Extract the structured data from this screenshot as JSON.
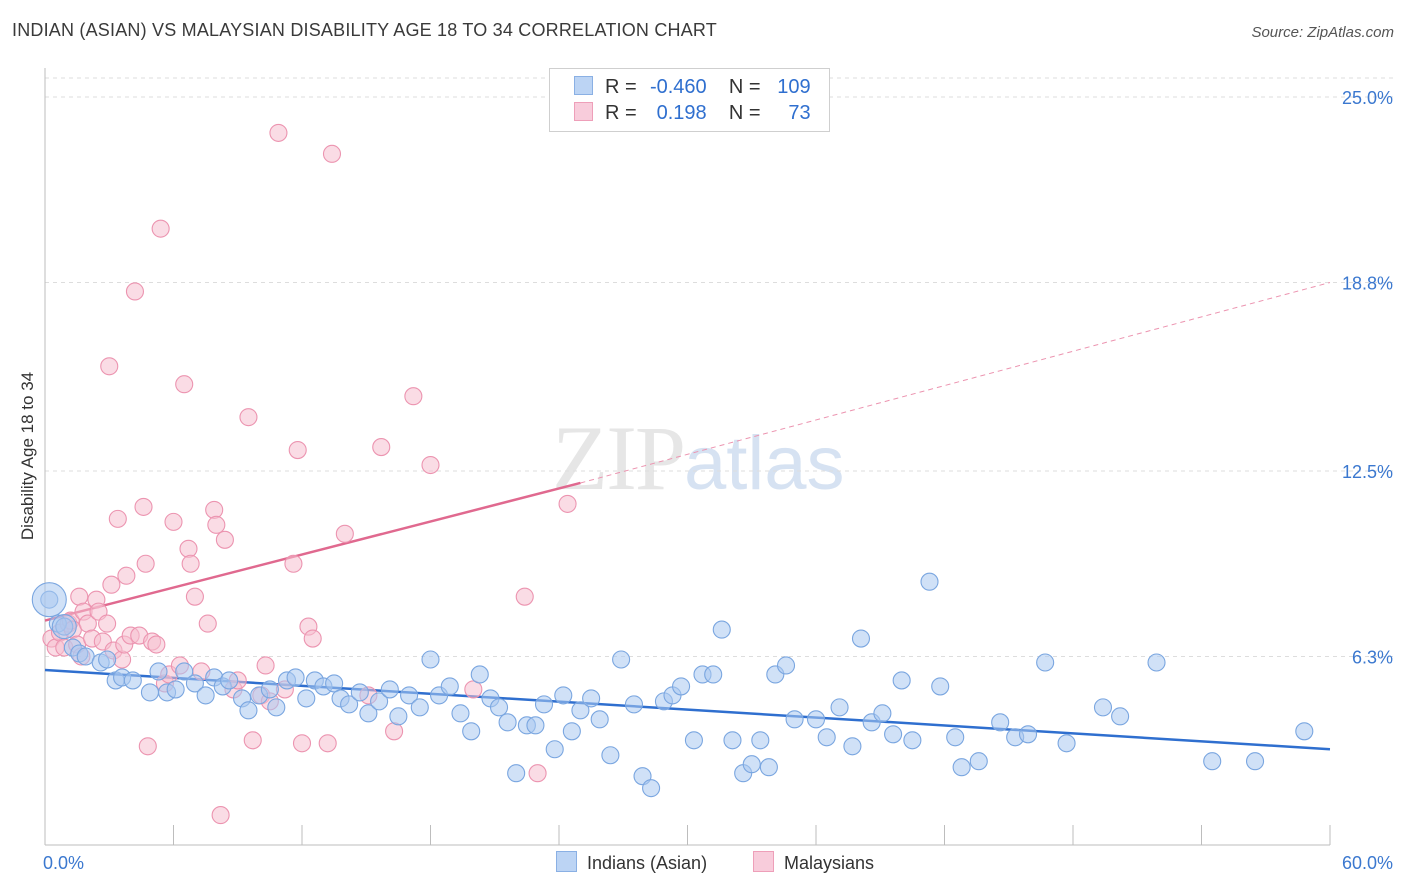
{
  "title": "INDIAN (ASIAN) VS MALAYSIAN DISABILITY AGE 18 TO 34 CORRELATION CHART",
  "source": "Source: ZipAtlas.com",
  "watermark": {
    "zip": "ZIP",
    "atlas": "atlas"
  },
  "legend": {
    "r_label": "R =",
    "n_label": "N =",
    "rows": [
      {
        "r": "-0.460",
        "n": "109"
      },
      {
        "r": "0.198",
        "n": "73"
      }
    ]
  },
  "bottom_legend": [
    "Indians (Asian)",
    "Malaysians"
  ],
  "colors": {
    "blue_fill": "#aac8f0",
    "blue_stroke": "#7aa6e0",
    "blue_line": "#2f6fcf",
    "pink_fill": "#f6bfd0",
    "pink_stroke": "#ec94b0",
    "pink_line": "#e0698f",
    "axis_text": "#3b78cf",
    "grid": "#dddddd"
  },
  "chart_data": {
    "type": "scatter",
    "title": "INDIAN (ASIAN) VS MALAYSIAN DISABILITY AGE 18 TO 34 CORRELATION CHART",
    "xlabel": "",
    "ylabel": "Disability Age 18 to 34",
    "xlim": [
      0,
      60
    ],
    "ylim": [
      0,
      25
    ],
    "x_tick_labels": [
      "0.0%",
      "60.0%"
    ],
    "y_ticks": [
      6.3,
      12.5,
      18.8,
      25.0
    ],
    "y_tick_labels": [
      "6.3%",
      "12.5%",
      "18.8%",
      "25.0%"
    ],
    "grid": "horizontal dashed",
    "legend_position": "top-center",
    "series": [
      {
        "name": "Indians (Asian)",
        "color": "#aac8f0",
        "trend": {
          "x": [
            0,
            60
          ],
          "y": [
            5.85,
            3.2
          ]
        },
        "points": [
          [
            0.2,
            8.2
          ],
          [
            0.6,
            7.4
          ],
          [
            0.9,
            7.3
          ],
          [
            1.3,
            6.6
          ],
          [
            1.6,
            6.4
          ],
          [
            1.9,
            6.3
          ],
          [
            2.6,
            6.1
          ],
          [
            2.9,
            6.2
          ],
          [
            3.3,
            5.5
          ],
          [
            3.6,
            5.6
          ],
          [
            4.1,
            5.5
          ],
          [
            4.9,
            5.1
          ],
          [
            5.3,
            5.8
          ],
          [
            5.7,
            5.1
          ],
          [
            6.1,
            5.2
          ],
          [
            6.5,
            5.8
          ],
          [
            7.0,
            5.4
          ],
          [
            7.5,
            5.0
          ],
          [
            7.9,
            5.6
          ],
          [
            8.3,
            5.3
          ],
          [
            8.6,
            5.5
          ],
          [
            9.2,
            4.9
          ],
          [
            9.5,
            4.5
          ],
          [
            10.0,
            5.0
          ],
          [
            10.5,
            5.2
          ],
          [
            10.8,
            4.6
          ],
          [
            11.3,
            5.5
          ],
          [
            11.7,
            5.6
          ],
          [
            12.2,
            4.9
          ],
          [
            12.6,
            5.5
          ],
          [
            13.0,
            5.3
          ],
          [
            13.5,
            5.4
          ],
          [
            13.8,
            4.9
          ],
          [
            14.2,
            4.7
          ],
          [
            14.7,
            5.1
          ],
          [
            15.1,
            4.4
          ],
          [
            15.6,
            4.8
          ],
          [
            16.1,
            5.2
          ],
          [
            16.5,
            4.3
          ],
          [
            17.0,
            5.0
          ],
          [
            17.5,
            4.6
          ],
          [
            18.0,
            6.2
          ],
          [
            18.4,
            5.0
          ],
          [
            18.9,
            5.3
          ],
          [
            19.4,
            4.4
          ],
          [
            19.9,
            3.8
          ],
          [
            20.3,
            5.7
          ],
          [
            20.8,
            4.9
          ],
          [
            21.2,
            4.6
          ],
          [
            21.6,
            4.1
          ],
          [
            22.0,
            2.4
          ],
          [
            22.5,
            4.0
          ],
          [
            22.9,
            4.0
          ],
          [
            23.3,
            4.7
          ],
          [
            23.8,
            3.2
          ],
          [
            24.2,
            5.0
          ],
          [
            24.6,
            3.8
          ],
          [
            25.0,
            4.5
          ],
          [
            25.5,
            4.9
          ],
          [
            25.9,
            4.2
          ],
          [
            26.4,
            3.0
          ],
          [
            26.9,
            6.2
          ],
          [
            27.5,
            4.7
          ],
          [
            27.9,
            2.3
          ],
          [
            28.3,
            1.9
          ],
          [
            28.9,
            4.8
          ],
          [
            29.3,
            5.0
          ],
          [
            29.7,
            5.3
          ],
          [
            30.3,
            3.5
          ],
          [
            30.7,
            5.7
          ],
          [
            31.2,
            5.7
          ],
          [
            31.6,
            7.2
          ],
          [
            32.1,
            3.5
          ],
          [
            32.6,
            2.4
          ],
          [
            33.0,
            2.7
          ],
          [
            33.4,
            3.5
          ],
          [
            33.8,
            2.6
          ],
          [
            34.1,
            5.7
          ],
          [
            34.6,
            6.0
          ],
          [
            35.0,
            4.2
          ],
          [
            36.0,
            4.2
          ],
          [
            36.5,
            3.6
          ],
          [
            37.1,
            4.6
          ],
          [
            37.7,
            3.3
          ],
          [
            38.1,
            6.9
          ],
          [
            38.6,
            4.1
          ],
          [
            39.1,
            4.4
          ],
          [
            39.6,
            3.7
          ],
          [
            40.0,
            5.5
          ],
          [
            40.5,
            3.5
          ],
          [
            41.3,
            8.8
          ],
          [
            41.8,
            5.3
          ],
          [
            42.5,
            3.6
          ],
          [
            42.8,
            2.6
          ],
          [
            43.6,
            2.8
          ],
          [
            44.6,
            4.1
          ],
          [
            45.3,
            3.6
          ],
          [
            45.9,
            3.7
          ],
          [
            46.7,
            6.1
          ],
          [
            47.7,
            3.4
          ],
          [
            49.4,
            4.6
          ],
          [
            50.2,
            4.3
          ],
          [
            51.9,
            6.1
          ],
          [
            54.5,
            2.8
          ],
          [
            56.5,
            2.8
          ],
          [
            58.8,
            3.8
          ]
        ]
      },
      {
        "name": "Malaysians",
        "color": "#f6bfd0",
        "trend": {
          "x": [
            0,
            25
          ],
          "y": [
            7.5,
            12.1
          ]
        },
        "trend_dashed": {
          "x": [
            25,
            60
          ],
          "y": [
            12.1,
            18.8
          ]
        },
        "points": [
          [
            0.3,
            6.9
          ],
          [
            0.5,
            6.6
          ],
          [
            0.7,
            7.1
          ],
          [
            0.9,
            6.6
          ],
          [
            1.1,
            7.4
          ],
          [
            1.2,
            7.5
          ],
          [
            1.3,
            7.2
          ],
          [
            1.5,
            6.7
          ],
          [
            1.6,
            8.3
          ],
          [
            1.7,
            6.3
          ],
          [
            1.8,
            7.8
          ],
          [
            2.0,
            7.4
          ],
          [
            2.2,
            6.9
          ],
          [
            2.4,
            8.2
          ],
          [
            2.5,
            7.8
          ],
          [
            2.7,
            6.8
          ],
          [
            2.9,
            7.4
          ],
          [
            3.0,
            16.0
          ],
          [
            3.1,
            8.7
          ],
          [
            3.2,
            6.5
          ],
          [
            3.4,
            10.9
          ],
          [
            3.6,
            6.2
          ],
          [
            3.7,
            6.7
          ],
          [
            3.8,
            9.0
          ],
          [
            4.0,
            7.0
          ],
          [
            4.2,
            18.5
          ],
          [
            4.4,
            7.0
          ],
          [
            4.6,
            11.3
          ],
          [
            4.7,
            9.4
          ],
          [
            4.8,
            3.3
          ],
          [
            5.0,
            6.8
          ],
          [
            5.2,
            6.7
          ],
          [
            5.4,
            20.6
          ],
          [
            5.6,
            5.4
          ],
          [
            5.8,
            5.7
          ],
          [
            6.0,
            10.8
          ],
          [
            6.3,
            6.0
          ],
          [
            6.5,
            15.4
          ],
          [
            6.7,
            9.9
          ],
          [
            6.8,
            9.4
          ],
          [
            7.0,
            8.3
          ],
          [
            7.3,
            5.8
          ],
          [
            7.6,
            7.4
          ],
          [
            7.9,
            11.2
          ],
          [
            8.0,
            10.7
          ],
          [
            8.2,
            1.0
          ],
          [
            8.4,
            10.2
          ],
          [
            8.8,
            5.2
          ],
          [
            9.0,
            5.5
          ],
          [
            9.5,
            14.3
          ],
          [
            9.7,
            3.5
          ],
          [
            10.1,
            5.0
          ],
          [
            10.3,
            6.0
          ],
          [
            10.5,
            4.8
          ],
          [
            10.9,
            23.8
          ],
          [
            11.2,
            5.2
          ],
          [
            11.6,
            9.4
          ],
          [
            11.8,
            13.2
          ],
          [
            12.0,
            3.4
          ],
          [
            12.3,
            7.3
          ],
          [
            12.5,
            6.9
          ],
          [
            13.2,
            3.4
          ],
          [
            13.4,
            23.1
          ],
          [
            14.0,
            10.4
          ],
          [
            15.1,
            5.0
          ],
          [
            15.7,
            13.3
          ],
          [
            16.3,
            3.8
          ],
          [
            17.2,
            15.0
          ],
          [
            18.0,
            12.7
          ],
          [
            20.0,
            5.2
          ],
          [
            22.4,
            8.3
          ],
          [
            23.0,
            2.4
          ],
          [
            24.4,
            11.4
          ]
        ]
      }
    ]
  }
}
